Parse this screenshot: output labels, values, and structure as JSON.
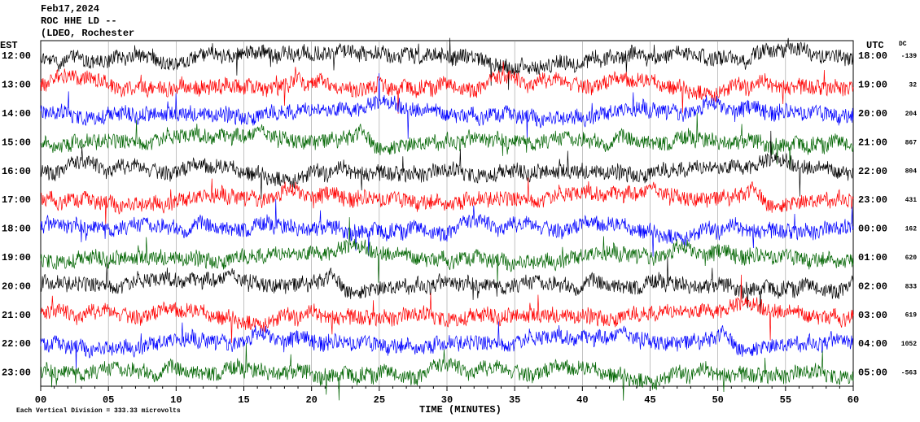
{
  "header": {
    "date": "Feb17,2024",
    "station": "ROC HHE LD --",
    "network": "(LDEO, Rochester"
  },
  "left_axis": {
    "title": "EST",
    "labels": [
      "12:00",
      "13:00",
      "14:00",
      "15:00",
      "16:00",
      "17:00",
      "18:00",
      "19:00",
      "20:00",
      "21:00",
      "22:00",
      "23:00"
    ]
  },
  "right_axis": {
    "title": "UTC",
    "labels": [
      "18:00",
      "19:00",
      "20:00",
      "21:00",
      "22:00",
      "23:00",
      "00:00",
      "01:00",
      "02:00",
      "03:00",
      "04:00",
      "05:00"
    ],
    "dc_title": "DC",
    "dc_values": [
      -139,
      32,
      204,
      867,
      804,
      431,
      162,
      620,
      833,
      619,
      1052,
      -563
    ]
  },
  "x_axis": {
    "labels": [
      "00",
      "05",
      "10",
      "15",
      "20",
      "25",
      "30",
      "35",
      "40",
      "45",
      "50",
      "55",
      "60"
    ],
    "title": "TIME (MINUTES)"
  },
  "footer": "Each Vertical Division = 333.33 microvolts",
  "trace_colors": [
    "#000000",
    "#ff0000",
    "#0000ff",
    "#006400"
  ]
}
